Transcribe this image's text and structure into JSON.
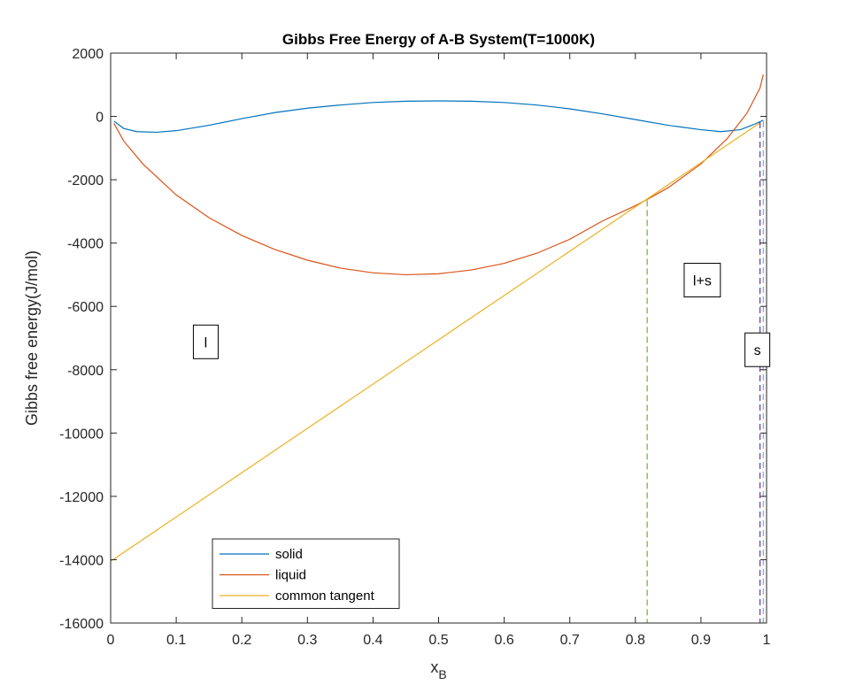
{
  "chart_data": {
    "type": "line",
    "title": "Gibbs Free Energy of A-B System(T=1000K)",
    "xlabel_main": "x",
    "xlabel_sub": "B",
    "ylabel": "Gibbs free energy(J/mol)",
    "xlim": [
      0,
      1
    ],
    "ylim": [
      -16000,
      2000
    ],
    "xticks": [
      0,
      0.1,
      0.2,
      0.3,
      0.4,
      0.5,
      0.6,
      0.7,
      0.8,
      0.9,
      1
    ],
    "xtick_labels": [
      "0",
      "0.1",
      "0.2",
      "0.3",
      "0.4",
      "0.5",
      "0.6",
      "0.7",
      "0.8",
      "0.9",
      "1"
    ],
    "yticks": [
      2000,
      0,
      -2000,
      -4000,
      -6000,
      -8000,
      -10000,
      -12000,
      -14000,
      -16000
    ],
    "ytick_labels": [
      "2000",
      "0",
      "-2000",
      "-4000",
      "-6000",
      "-8000",
      "-10000",
      "-12000",
      "-14000",
      "-16000"
    ],
    "grid": false,
    "legend_position": "bottom-left",
    "series": [
      {
        "name": "solid",
        "color": "#0072BD",
        "x": [
          0.005,
          0.02,
          0.04,
          0.07,
          0.1,
          0.15,
          0.2,
          0.25,
          0.3,
          0.35,
          0.4,
          0.45,
          0.5,
          0.55,
          0.6,
          0.65,
          0.7,
          0.75,
          0.8,
          0.85,
          0.9,
          0.93,
          0.96,
          0.98,
          0.995
        ],
        "y": [
          -150,
          -380,
          -480,
          -500,
          -450,
          -280,
          -70,
          120,
          260,
          360,
          440,
          480,
          490,
          480,
          440,
          360,
          240,
          80,
          -100,
          -280,
          -420,
          -480,
          -420,
          -260,
          -120
        ]
      },
      {
        "name": "liquid",
        "color": "#D95319",
        "x": [
          0.005,
          0.02,
          0.05,
          0.1,
          0.15,
          0.2,
          0.25,
          0.3,
          0.35,
          0.4,
          0.45,
          0.5,
          0.55,
          0.6,
          0.65,
          0.7,
          0.75,
          0.8,
          0.82,
          0.85,
          0.9,
          0.94,
          0.97,
          0.99,
          0.995
        ],
        "y": [
          -220,
          -780,
          -1520,
          -2480,
          -3200,
          -3760,
          -4200,
          -4540,
          -4790,
          -4940,
          -5000,
          -4970,
          -4850,
          -4640,
          -4320,
          -3880,
          -3300,
          -2820,
          -2600,
          -2250,
          -1500,
          -700,
          100,
          900,
          1320
        ]
      },
      {
        "name": "common tangent",
        "color": "#EDB120",
        "x": [
          0,
          0.99
        ],
        "y": [
          -14050,
          -200
        ]
      }
    ],
    "vertical_lines": [
      {
        "x": 0.818,
        "y_top": -2650,
        "color": "#77AC30",
        "style": "dashed"
      },
      {
        "x": 0.99,
        "y_top": -180,
        "color": "#7E2F8E",
        "style": "dashed"
      },
      {
        "x": 0.995,
        "y_top": -150,
        "color": "#4DBEEE",
        "style": "dashed"
      }
    ],
    "annotations": [
      {
        "text": "l",
        "x": 0.145,
        "y": -7120
      },
      {
        "text": "l+s",
        "x": 0.902,
        "y": -5170
      },
      {
        "text": "s",
        "x": 0.986,
        "y": -7370
      }
    ]
  }
}
